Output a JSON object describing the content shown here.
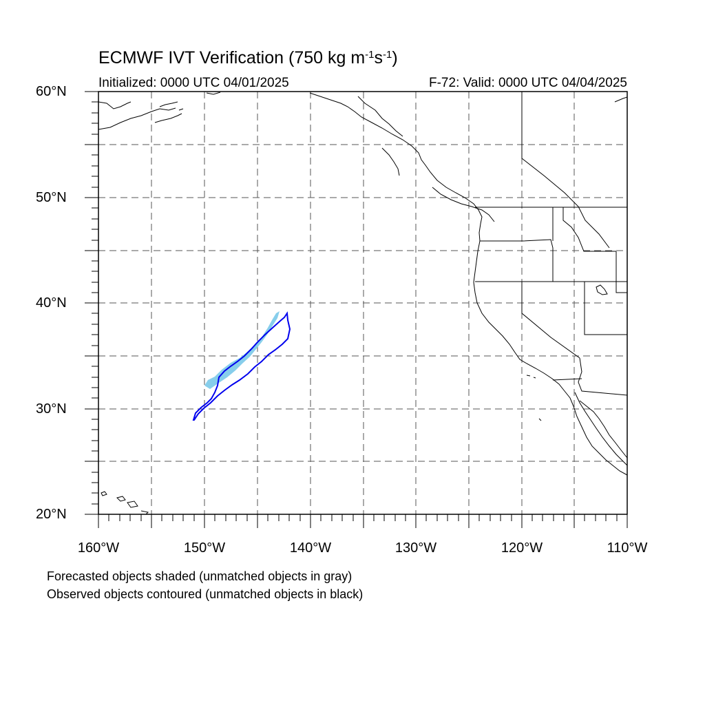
{
  "title": {
    "main": "ECMWF IVT Verification (750 kg m",
    "sup1": "-1",
    "mid": "s",
    "sup2": "-1",
    "end": ")"
  },
  "subtitle": {
    "initialized": "Initialized: 0000 UTC 04/01/2025",
    "valid": "F-72: Valid: 0000 UTC 04/04/2025"
  },
  "axes": {
    "lat_range": [
      20,
      60
    ],
    "lon_range": [
      -160,
      -110
    ],
    "grid": "dashed",
    "lat_labels": [
      "60°N",
      "50°N",
      "40°N",
      "30°N",
      "20°N"
    ],
    "lon_labels": [
      "160°W",
      "150°W",
      "140°W",
      "130°W",
      "120°W",
      "110°W"
    ]
  },
  "legend_notes": [
    "Forecasted objects shaded (unmatched objects in gray)",
    "Observed objects contoured (unmatched objects in black)"
  ],
  "colors": {
    "forecast_fill": "#87ceeb",
    "observed_contour": "#0000ee",
    "coastline": "#000000",
    "grid": "#555555"
  }
}
